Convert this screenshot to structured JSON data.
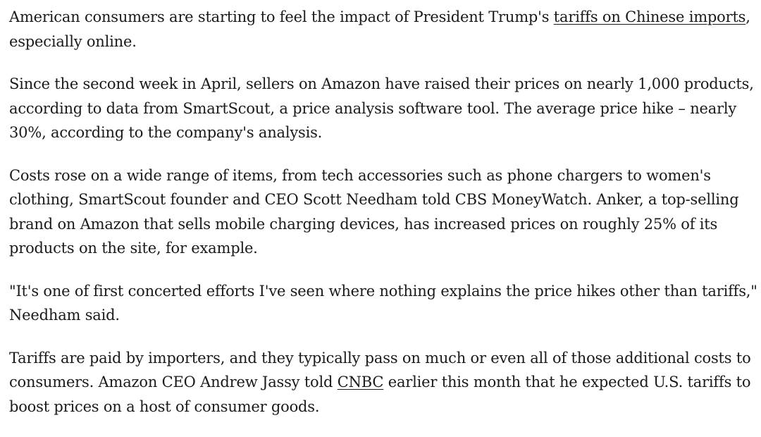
{
  "article": {
    "p1": {
      "before": "American consumers are starting to feel the impact of President Trump's ",
      "link": "tariffs on Chinese imports",
      "after": ", especially online."
    },
    "p2": {
      "text": "Since the second week in April, sellers on Amazon have raised their prices on nearly 1,000 products, according to data from SmartScout, a price analysis software tool. The average price hike – nearly 30%, according to the company's analysis."
    },
    "p3": {
      "text": "Costs rose on a wide range of items, from tech accessories such as phone chargers to women's clothing, SmartScout founder and CEO Scott Needham told CBS MoneyWatch. Anker, a top-selling brand on Amazon that sells mobile charging devices, has increased prices on roughly 25% of its products on the site, for example."
    },
    "p4": {
      "text": "\"It's one of first concerted efforts I've seen where nothing explains the price hikes other than tariffs,\" Needham said."
    },
    "p5": {
      "before": "Tariffs are paid by importers, and they typically pass on much or even all of those additional costs to consumers. Amazon CEO Andrew Jassy told ",
      "link": "CNBC",
      "after": " earlier this month that he expected U.S. tariffs to boost prices on a host of consumer goods."
    }
  }
}
